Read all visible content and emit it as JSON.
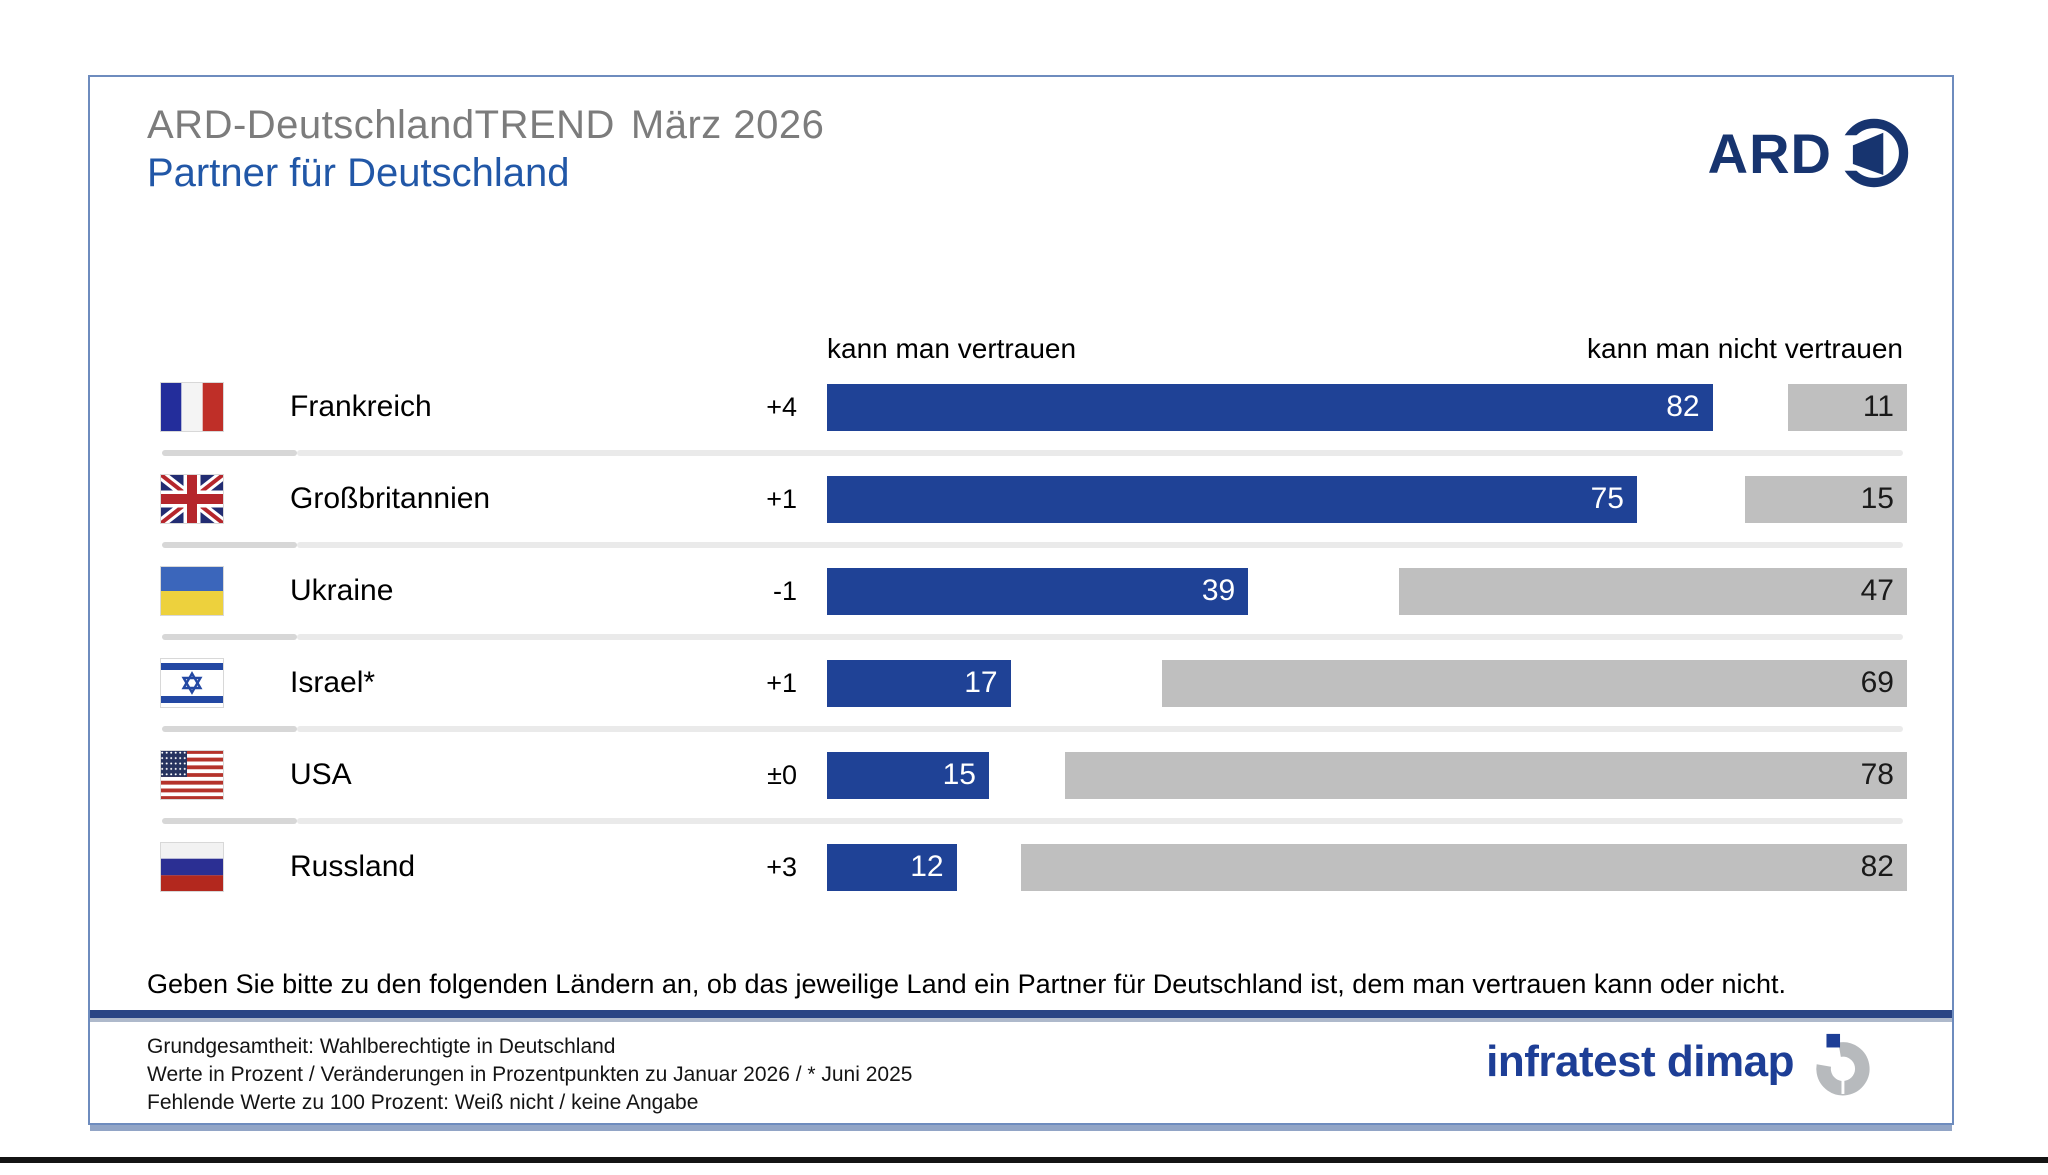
{
  "slide": {
    "supertitle": "ARD-DeutschlandTREND",
    "supertitle_date": "März 2026",
    "title": "Partner für Deutschland",
    "question": "Geben Sie bitte zu den folgenden Ländern an, ob das jeweilige Land ein Partner für Deutschland ist, dem man vertrauen kann oder nicht.",
    "footnotes": [
      "Grundgesamtheit: Wahlberechtigte in Deutschland",
      "Werte in Prozent / Veränderungen in Prozentpunkten zu Januar 2026 / * Juni 2025",
      "Fehlende Werte zu 100 Prozent: Weiß nicht / keine Angabe"
    ],
    "brand": {
      "ard_logo_text": "ARD",
      "agency_logo_text": "infratest dimap"
    },
    "colors": {
      "title_blue": "#2157a7",
      "supertitle_gray": "#7c7c7c",
      "ard_navy": "#17346f",
      "agency_blue": "#1d3e96",
      "slide_border": "#6e8cbe"
    }
  },
  "chart_data": {
    "type": "bar",
    "orientation": "horizontal",
    "title": "Partner für Deutschland",
    "legend": {
      "left": "kann man vertrauen",
      "right": "kann man nicht vertrauen"
    },
    "xlim": [
      0,
      100
    ],
    "unit": "Prozent",
    "categories": [
      "Frankreich",
      "Großbritannien",
      "Ukraine",
      "Israel*",
      "USA",
      "Russland"
    ],
    "series": [
      {
        "name": "kann man vertrauen",
        "values": [
          82,
          75,
          39,
          17,
          15,
          12
        ]
      },
      {
        "name": "kann man nicht vertrauen",
        "values": [
          11,
          15,
          47,
          69,
          78,
          82
        ]
      }
    ],
    "rows": [
      {
        "country": "Frankreich",
        "flag": "france",
        "change": "+4",
        "trust": 82,
        "not_trust": 11
      },
      {
        "country": "Großbritannien",
        "flag": "uk",
        "change": "+1",
        "trust": 75,
        "not_trust": 15
      },
      {
        "country": "Ukraine",
        "flag": "ukraine",
        "change": "-1",
        "trust": 39,
        "not_trust": 47
      },
      {
        "country": "Israel*",
        "flag": "israel",
        "change": "+1",
        "trust": 17,
        "not_trust": 69
      },
      {
        "country": "USA",
        "flag": "usa",
        "change": "±0",
        "trust": 15,
        "not_trust": 78
      },
      {
        "country": "Russland",
        "flag": "russia",
        "change": "+3",
        "trust": 12,
        "not_trust": 82
      }
    ],
    "colors": {
      "trust_bar": "#1f4296",
      "not_trust_bar": "#bfbfbf"
    }
  }
}
